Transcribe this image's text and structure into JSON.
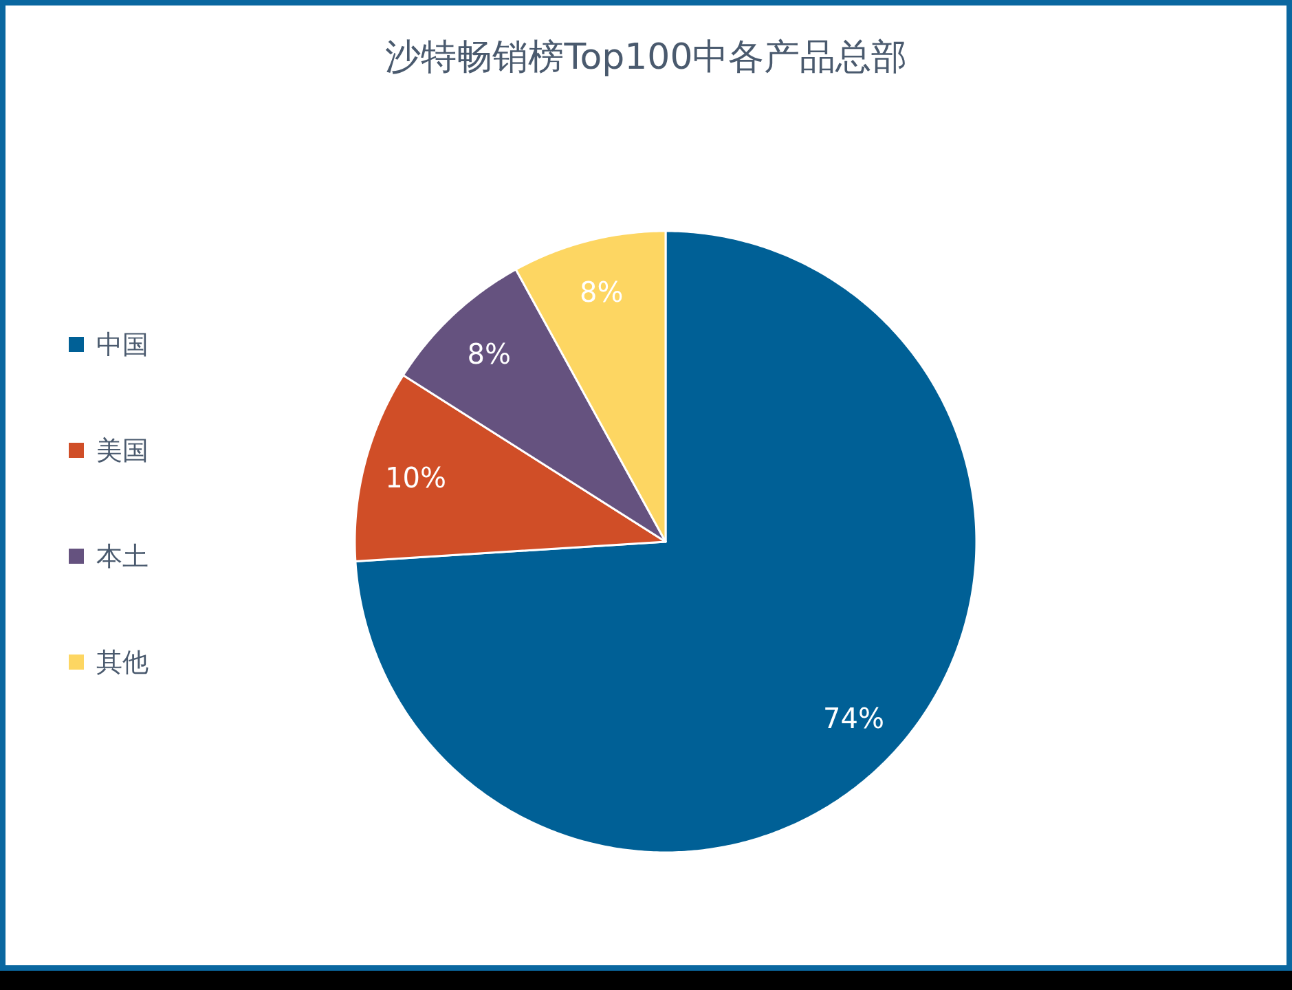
{
  "chart_data": {
    "type": "pie",
    "title": "沙特畅销榜Top100中各产品总部",
    "categories": [
      "中国",
      "美国",
      "本土",
      "其他"
    ],
    "values": [
      74,
      10,
      8,
      8
    ],
    "colors": [
      "#006096",
      "#d04e27",
      "#65527f",
      "#fdd662"
    ],
    "value_labels": [
      "74%",
      "10%",
      "8%",
      "8%"
    ],
    "legend": "left"
  }
}
